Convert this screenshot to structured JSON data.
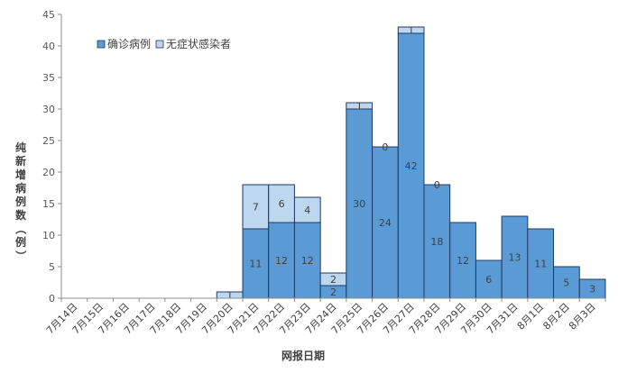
{
  "chart_data": {
    "type": "bar",
    "stacked": true,
    "categories": [
      "7月14日",
      "7月15日",
      "7月16日",
      "7月17日",
      "7月18日",
      "7月19日",
      "7月20日",
      "7月21日",
      "7月22日",
      "7月23日",
      "7月24日",
      "7月25日",
      "7月26日",
      "7月27日",
      "7月28日",
      "7月29日",
      "7月30日",
      "7月31日",
      "8月1日",
      "8月2日",
      "8月3日"
    ],
    "series": [
      {
        "name": "确诊病例",
        "color": "#5b9bd5",
        "values": [
          0,
          0,
          0,
          0,
          0,
          0,
          0,
          11,
          12,
          12,
          2,
          30,
          24,
          42,
          18,
          12,
          6,
          13,
          11,
          5,
          3
        ]
      },
      {
        "name": "无症状感染者",
        "color": "#bdd7ee",
        "values": [
          0,
          0,
          0,
          0,
          0,
          0,
          1,
          7,
          6,
          4,
          2,
          1,
          0,
          1,
          0,
          0,
          0,
          0,
          0,
          0,
          0
        ]
      }
    ],
    "data_labels": {
      "confirmed": [
        "",
        "",
        "",
        "",
        "",
        "",
        "",
        "11",
        "12",
        "12",
        "2",
        "30",
        "24",
        "42",
        "18",
        "12",
        "6",
        "13",
        "11",
        "5",
        "3"
      ],
      "asymptomatic": [
        "",
        "",
        "",
        "",
        "",
        "",
        "1",
        "7",
        "6",
        "4",
        "2",
        "1",
        "0",
        "1",
        "0",
        "",
        "",
        "",
        "",
        "",
        ""
      ]
    },
    "xlabel": "网报日期",
    "ylabel": "纯新增病例数（例）",
    "ylim": [
      0,
      45
    ],
    "yticks": [
      0,
      5,
      10,
      15,
      20,
      25,
      30,
      35,
      40,
      45
    ],
    "grid": false,
    "legend_position": "top-left"
  }
}
